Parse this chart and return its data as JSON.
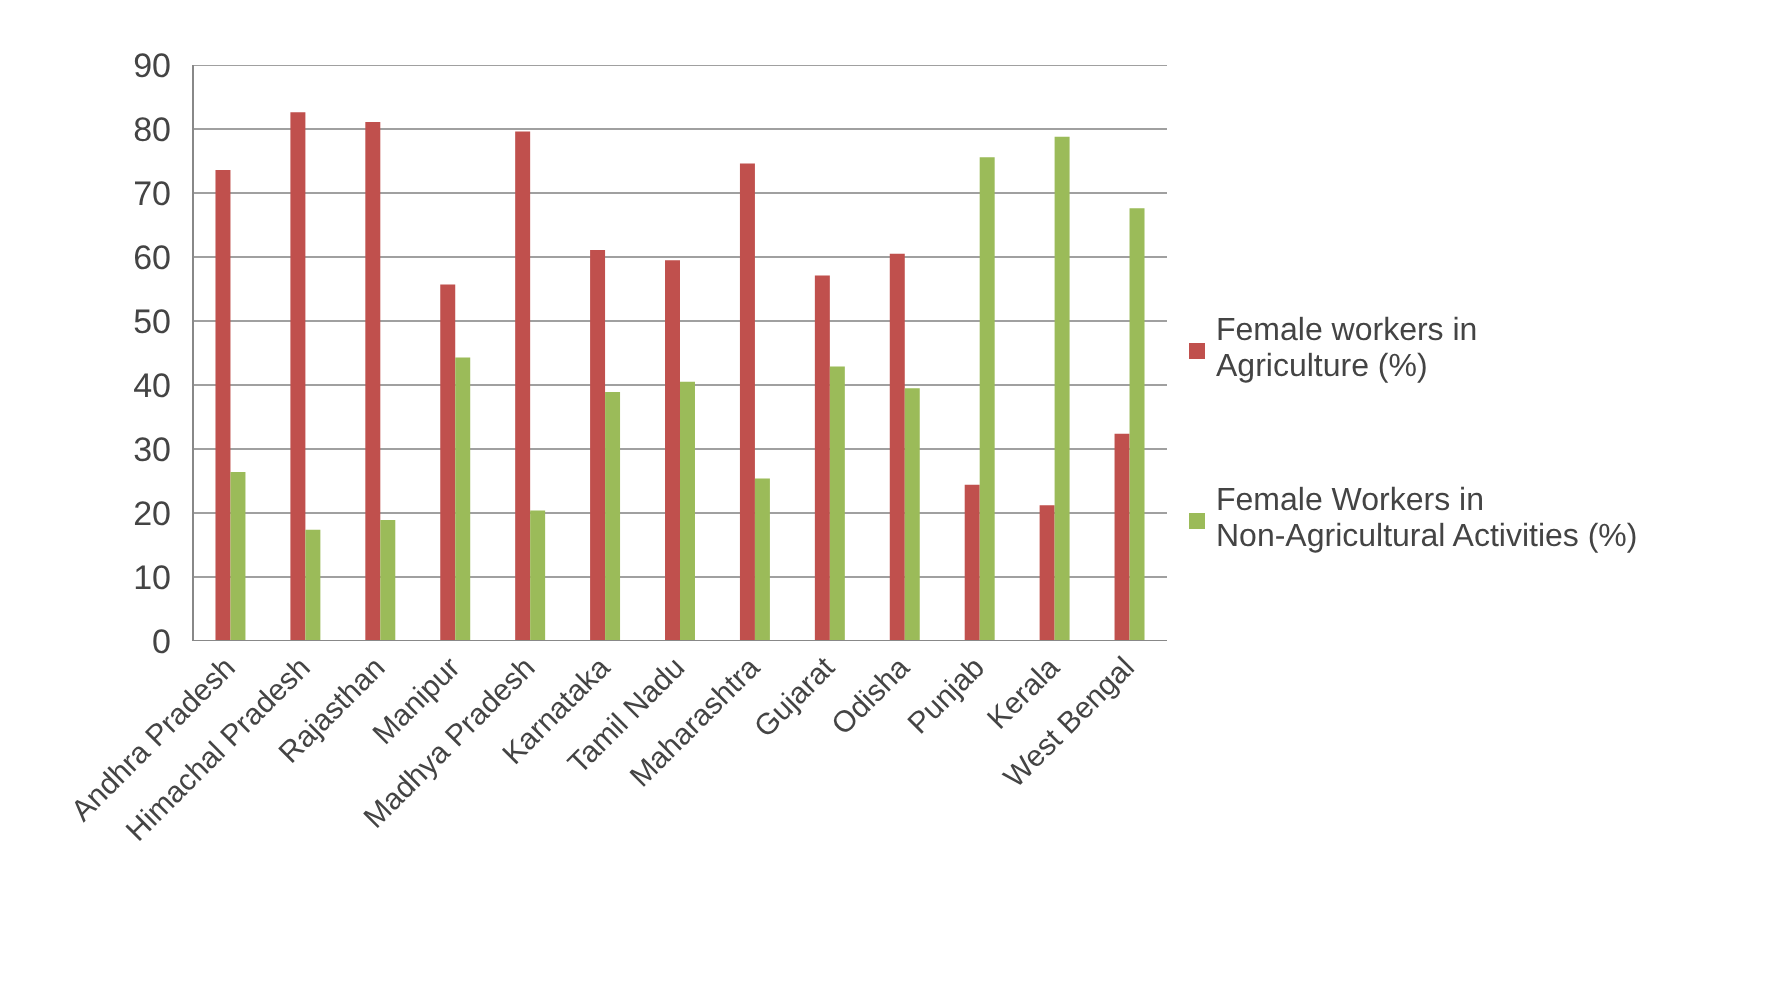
{
  "chart_data": {
    "type": "bar",
    "categories": [
      "Andhra Pradesh",
      "Himachal Pradesh",
      "Rajasthan",
      "Manipur",
      "Madhya Pradesh",
      "Karnataka",
      "Tamil Nadu",
      "Maharashtra",
      "Gujarat",
      "Odisha",
      "Punjab",
      "Kerala",
      "West Bengal"
    ],
    "series": [
      {
        "name": "Female workers in Agriculture (%)",
        "color": "#c0504d",
        "values": [
          73.6,
          82.6,
          81.1,
          55.7,
          79.6,
          61.1,
          59.5,
          74.6,
          57.1,
          60.5,
          24.4,
          21.2,
          32.4
        ]
      },
      {
        "name": "Female Workers in Non-Agricultural Activities (%)",
        "color": "#9bbb59",
        "values": [
          26.4,
          17.4,
          18.9,
          44.3,
          20.4,
          38.9,
          40.5,
          25.4,
          42.9,
          39.5,
          75.6,
          78.8,
          67.6
        ]
      }
    ],
    "ylim": [
      0,
      90
    ],
    "yticks": [
      0,
      10,
      20,
      30,
      40,
      50,
      60,
      70,
      80,
      90
    ],
    "grid": "y",
    "legend": "right"
  }
}
